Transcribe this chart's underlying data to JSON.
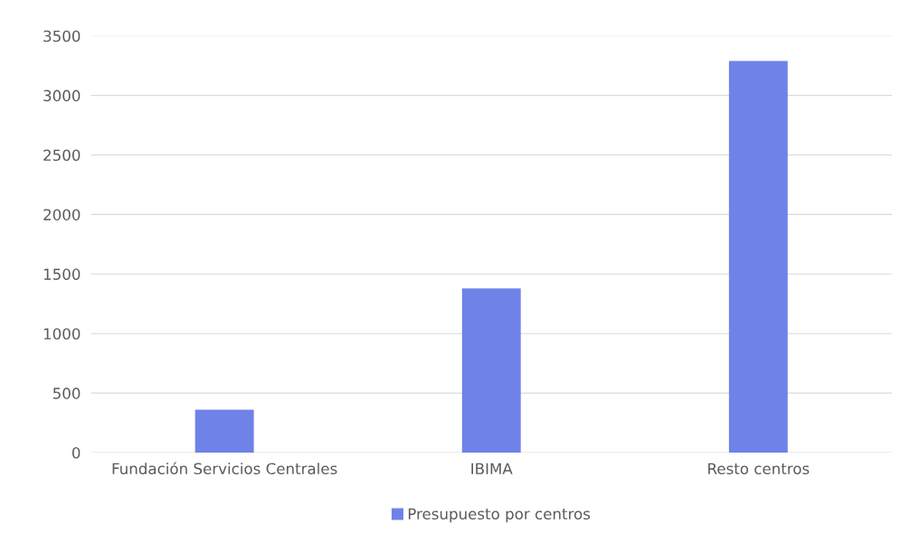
{
  "chart_data": {
    "type": "bar",
    "categories": [
      "Fundación Servicios Centrales",
      "IBIMA",
      "Resto centros"
    ],
    "series": [
      {
        "name": "Presupuesto por centros",
        "color": "#6f82e8",
        "values": [
          360,
          1380,
          3290
        ]
      }
    ],
    "ylim": [
      0,
      3500
    ],
    "yticks": [
      0,
      500,
      1000,
      1500,
      2000,
      2500,
      3000,
      3500
    ],
    "grid": "y",
    "legend": "bottom"
  }
}
